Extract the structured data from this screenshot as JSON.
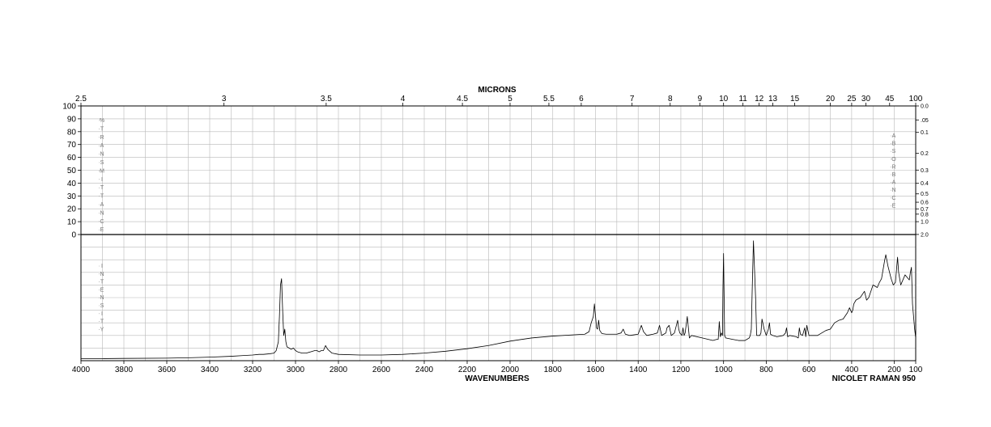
{
  "chart_data": {
    "type": "line",
    "title": "",
    "top_axis_title": "MICRONS",
    "bottom_axis_title": "WAVENUMBERS",
    "instrument_label": "NICOLET RAMAN 950",
    "transmittance_label": "%TRANSMITTANCE",
    "absorbance_label": "ABSORBANCE",
    "intensity_label": "INTENSITY",
    "x_range": [
      4000,
      100
    ],
    "x_ticks": [
      "4000",
      "3800",
      "3600",
      "3400",
      "3200",
      "3000",
      "2800",
      "2600",
      "2400",
      "2200",
      "2000",
      "1800",
      "1600",
      "1400",
      "1200",
      "1000",
      "800",
      "600",
      "400",
      "200",
      "100"
    ],
    "micron_ticks": [
      "2.5",
      "3",
      "3.5",
      "4",
      "4.5",
      "5",
      "5.5",
      "6",
      "7",
      "8",
      "9",
      "10",
      "11",
      "12",
      "13",
      "15",
      "20",
      "25",
      "30",
      "45",
      "100"
    ],
    "transmittance_ticks": [
      "100",
      "90",
      "80",
      "70",
      "60",
      "50",
      "40",
      "30",
      "20",
      "10",
      "0"
    ],
    "absorbance_ticks": [
      "0.0",
      ".05",
      "0.1",
      "0.2",
      "0.3",
      "0.4",
      "0.5",
      "0.6",
      "0.7",
      "0.8",
      "1.0",
      "2.0"
    ],
    "intensity_range": [
      0,
      100
    ],
    "grid": true,
    "series": [
      {
        "x": [
          4000,
          3800,
          3600,
          3500,
          3400,
          3300,
          3250,
          3200,
          3170,
          3150,
          3120,
          3100,
          3090,
          3080,
          3075,
          3070,
          3065,
          3060,
          3055,
          3050,
          3045,
          3040,
          3030,
          3020,
          3010,
          3000,
          2990,
          2970,
          2950,
          2930,
          2910,
          2900,
          2890,
          2880,
          2870,
          2860,
          2850,
          2830,
          2800,
          2700,
          2600,
          2500,
          2400,
          2300,
          2200,
          2100,
          2000,
          1900,
          1800,
          1700,
          1650,
          1630,
          1620,
          1610,
          1605,
          1600,
          1595,
          1590,
          1585,
          1580,
          1570,
          1550,
          1500,
          1480,
          1470,
          1460,
          1440,
          1400,
          1385,
          1375,
          1360,
          1330,
          1310,
          1300,
          1290,
          1280,
          1270,
          1265,
          1255,
          1245,
          1230,
          1215,
          1210,
          1205,
          1195,
          1190,
          1185,
          1180,
          1170,
          1160,
          1150,
          1100,
          1050,
          1030,
          1025,
          1020,
          1015,
          1010,
          1005,
          1003,
          1000,
          995,
          990,
          960,
          930,
          920,
          900,
          890,
          880,
          875,
          870,
          866,
          860,
          850,
          845,
          830,
          825,
          820,
          810,
          800,
          790,
          785,
          780,
          770,
          750,
          720,
          710,
          705,
          700,
          690,
          660,
          650,
          645,
          640,
          630,
          620,
          615,
          610,
          600,
          580,
          560,
          540,
          520,
          500,
          480,
          460,
          440,
          420,
          410,
          400,
          395,
          390,
          380,
          360,
          340,
          330,
          320,
          310,
          300,
          280,
          270,
          260,
          255,
          250,
          245,
          240,
          230,
          215,
          205,
          195,
          190,
          185,
          180,
          175,
          170,
          160,
          150,
          140,
          130,
          125,
          120,
          115,
          110,
          105,
          100
        ],
        "y": [
          1.5,
          1.8,
          2,
          2.3,
          2.8,
          3.5,
          4,
          4.5,
          5,
          5,
          5.5,
          6,
          8,
          15,
          35,
          60,
          65,
          40,
          20,
          25,
          15,
          11,
          10,
          9,
          10,
          8,
          7,
          6,
          6,
          7,
          8,
          8,
          7,
          8,
          8,
          12,
          9,
          6,
          5,
          4.5,
          4.5,
          5,
          6,
          7.5,
          9.5,
          12,
          15.5,
          18,
          19.5,
          20.5,
          21,
          23,
          30,
          35,
          45,
          36,
          26,
          25,
          32,
          24,
          21.5,
          21,
          21,
          22,
          25,
          21,
          20,
          21,
          28,
          23,
          20,
          21,
          22,
          28,
          20,
          21,
          22,
          26,
          28,
          20,
          22,
          32,
          25,
          22,
          20,
          26,
          20,
          22,
          35,
          18,
          20,
          18,
          16,
          17,
          17,
          31,
          19,
          22,
          20,
          55,
          85,
          20,
          18,
          17,
          16,
          16,
          16,
          17,
          18,
          20,
          25,
          55,
          95,
          50,
          20,
          20,
          22,
          33,
          25,
          20,
          25,
          30,
          21,
          20,
          19,
          20,
          22,
          26,
          19,
          20,
          19,
          18,
          26,
          21,
          20,
          26,
          19,
          28,
          20,
          20,
          20,
          22,
          24,
          25,
          30,
          32,
          33,
          38,
          42,
          38,
          40,
          45,
          48,
          50,
          55,
          48,
          50,
          55,
          60,
          58,
          62,
          65,
          70,
          75,
          80,
          84,
          75,
          65,
          60,
          62,
          72,
          82,
          70,
          65,
          60,
          64,
          68,
          66,
          64,
          70,
          74,
          45,
          35,
          25,
          18
        ]
      }
    ]
  }
}
